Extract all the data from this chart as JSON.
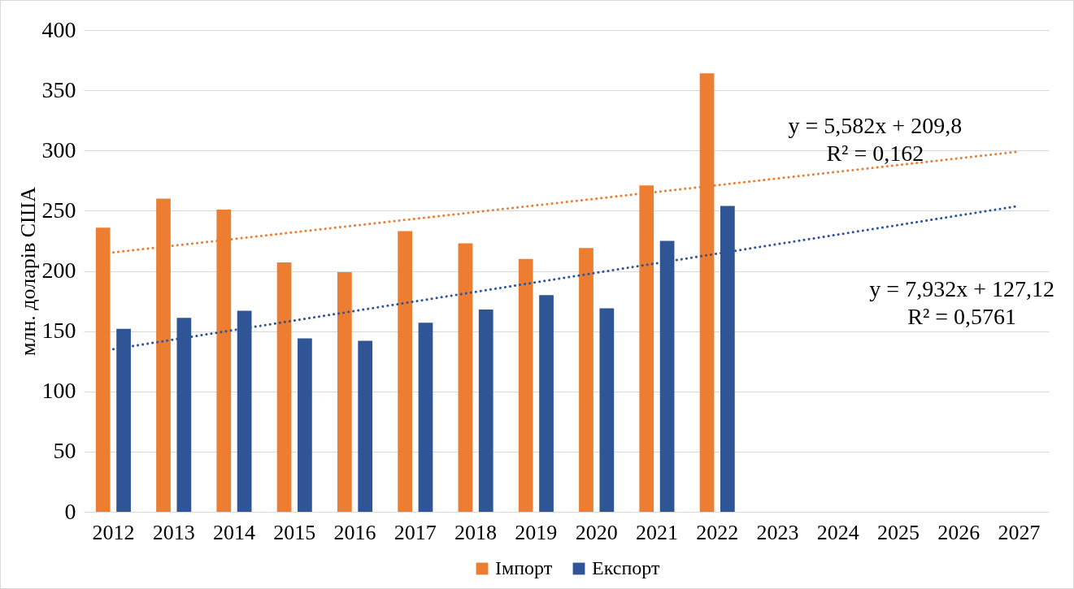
{
  "chart_data": {
    "type": "bar",
    "ylabel": "млн. доларів США",
    "categories": [
      "2012",
      "2013",
      "2014",
      "2015",
      "2016",
      "2017",
      "2018",
      "2019",
      "2020",
      "2021",
      "2022",
      "2023",
      "2024",
      "2025",
      "2026",
      "2027"
    ],
    "series": [
      {
        "name": "Імпорт",
        "color": "#ed7d31",
        "values": [
          236,
          260,
          251,
          207,
          199,
          233,
          223,
          210,
          219,
          271,
          364,
          null,
          null,
          null,
          null,
          null
        ]
      },
      {
        "name": "Експорт",
        "color": "#2f5597",
        "values": [
          152,
          161,
          167,
          144,
          142,
          157,
          168,
          180,
          169,
          225,
          254,
          null,
          null,
          null,
          null,
          null
        ]
      },
      {
        "type": "line",
        "color": "#ed7d31",
        "line_style": "dotted",
        "values": [
          215.4,
          null,
          null,
          null,
          null,
          null,
          null,
          null,
          null,
          null,
          null,
          null,
          null,
          null,
          null,
          299.1
        ]
      },
      {
        "type": "line",
        "color": "#2f5597",
        "line_style": "dotted",
        "values": [
          135.1,
          null,
          null,
          null,
          null,
          null,
          null,
          null,
          null,
          null,
          null,
          null,
          null,
          null,
          null,
          254.0
        ]
      }
    ],
    "annotations": [
      "y = 5,582x + 209,8\nR² = 0,162",
      "y = 7,932x + 127,12\nR² = 0,5761"
    ],
    "ylim": [
      0,
      400
    ],
    "yticks": [
      0,
      50,
      100,
      150,
      200,
      250,
      300,
      350,
      400
    ],
    "grid": "y",
    "legend": "bottom"
  }
}
